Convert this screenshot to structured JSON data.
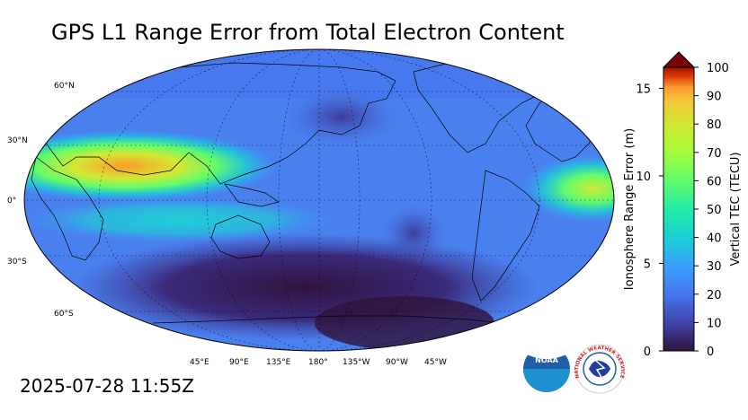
{
  "title": "GPS L1 Range Error from Total Electron Content",
  "timestamp": "2025-07-28 11:55Z",
  "map": {
    "lat_labels": [
      "60°N",
      "30°N",
      "0°",
      "30°S",
      "60°S"
    ],
    "lon_labels": [
      "45°E",
      "90°E",
      "135°E",
      "180°",
      "135°W",
      "90°W",
      "45°W"
    ]
  },
  "colorbar": {
    "tec_label": "Vertical TEC (TECU)",
    "range_label": "Ionosphere Range Error (m)",
    "tec_ticks": [
      "100",
      "90",
      "80",
      "70",
      "60",
      "50",
      "40",
      "30",
      "20",
      "10",
      "0"
    ],
    "range_ticks": [
      "15",
      "10",
      "5",
      "0"
    ],
    "tec_max": 100,
    "range_max": 16.2,
    "colors": {
      "c0": "#30123b",
      "c10": "#4145ab",
      "c20": "#4675ed",
      "c30": "#39a2fc",
      "c40": "#1bcfd4",
      "c50": "#24eca6",
      "c60": "#61fc6c",
      "c70": "#a4fc3b",
      "c80": "#d1e834",
      "c90": "#f3c63a",
      "c100": "#fe9b2d",
      "extend": "#7a0403"
    }
  },
  "logos": {
    "noaa_text": "NOAA",
    "nws_text": "NATIONAL WEATHER SERVICE"
  }
}
